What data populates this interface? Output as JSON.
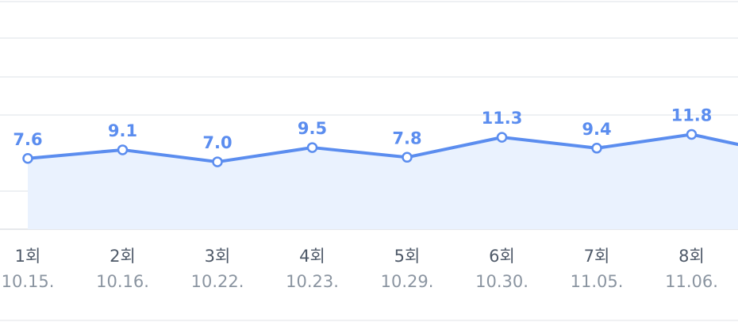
{
  "chart_data": {
    "type": "line",
    "x": [
      "1회",
      "2회",
      "3회",
      "4회",
      "5회",
      "6회",
      "7회",
      "8회"
    ],
    "dates": [
      "10.15.",
      "10.16.",
      "10.22.",
      "10.23.",
      "10.29.",
      "10.30.",
      "11.05.",
      "11.06."
    ],
    "series": [
      {
        "values": [
          7.6,
          9.1,
          7.0,
          9.5,
          7.8,
          11.3,
          9.4,
          11.8
        ],
        "labels": [
          "7.6",
          "9.1",
          "7.0",
          "9.5",
          "7.8",
          "11.3",
          "9.4",
          "11.8"
        ],
        "color": "#5b8def",
        "fill": "#eaf2fe"
      }
    ],
    "grid": true,
    "area_fill": true,
    "continues_right": true
  }
}
